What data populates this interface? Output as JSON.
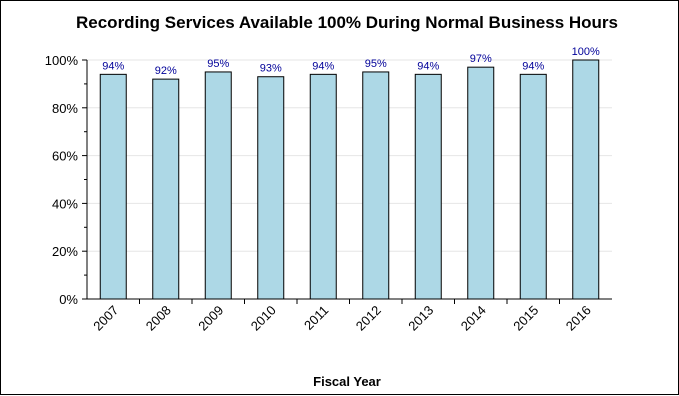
{
  "chart_data": {
    "type": "bar",
    "title": "Recording Services Available 100% During Normal Business Hours",
    "xlabel": "Fiscal Year",
    "ylabel": "",
    "categories": [
      "2007",
      "2008",
      "2009",
      "2010",
      "2011",
      "2012",
      "2013",
      "2014",
      "2015",
      "2016"
    ],
    "values": [
      94,
      92,
      95,
      93,
      94,
      95,
      94,
      97,
      94,
      100
    ],
    "data_labels": [
      "94%",
      "92%",
      "95%",
      "93%",
      "94%",
      "95%",
      "94%",
      "97%",
      "94%",
      "100%"
    ],
    "ylim": [
      0,
      100
    ],
    "y_ticks": [
      0,
      20,
      40,
      60,
      80,
      100
    ],
    "y_tick_labels": [
      "0%",
      "20%",
      "40%",
      "60%",
      "80%",
      "100%"
    ],
    "grid": true,
    "legend": "none",
    "bar_color": "#add8e6",
    "bar_edge_color": "#000000",
    "label_color": "#000099",
    "grid_color": "#e6e6e6"
  }
}
